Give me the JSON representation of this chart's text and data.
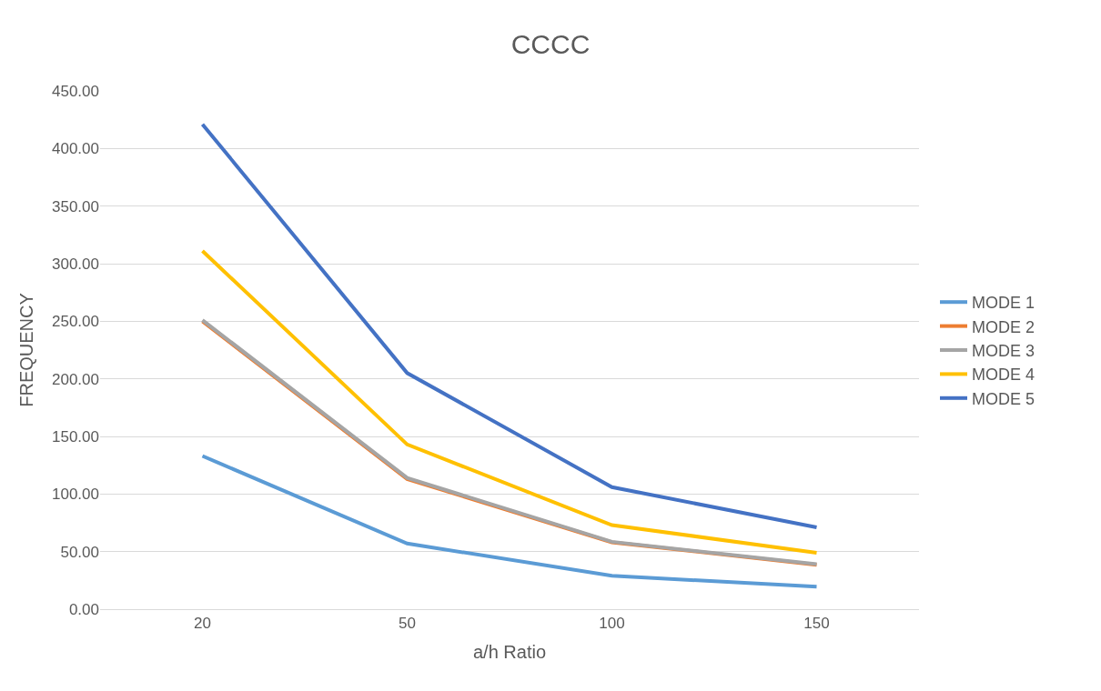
{
  "chart_data": {
    "type": "line",
    "title": "CCCC",
    "xlabel": "a/h Ratio",
    "ylabel": "FREQUENCY",
    "categories": [
      "20",
      "50",
      "100",
      "150"
    ],
    "series": [
      {
        "name": "MODE 1",
        "color": "#5b9bd5",
        "values": [
          133,
          57,
          29,
          19.5
        ]
      },
      {
        "name": "MODE 2",
        "color": "#ed7d31",
        "values": [
          250,
          113,
          58,
          38.5
        ]
      },
      {
        "name": "MODE 3",
        "color": "#a5a5a5",
        "values": [
          251,
          114,
          58.5,
          39
        ]
      },
      {
        "name": "MODE 4",
        "color": "#ffc000",
        "values": [
          311,
          143,
          73,
          49
        ]
      },
      {
        "name": "MODE 5",
        "color": "#4472c4",
        "values": [
          421,
          205,
          106,
          71
        ]
      }
    ],
    "ylim": [
      0,
      450
    ],
    "yticks": [
      {
        "value": 0,
        "label": "0.00"
      },
      {
        "value": 50,
        "label": "50.00"
      },
      {
        "value": 100,
        "label": "100.00"
      },
      {
        "value": 150,
        "label": "150.00"
      },
      {
        "value": 200,
        "label": "200.00"
      },
      {
        "value": 250,
        "label": "250.00"
      },
      {
        "value": 300,
        "label": "300.00"
      },
      {
        "value": 350,
        "label": "350.00"
      },
      {
        "value": 400,
        "label": "400.00"
      },
      {
        "value": 450,
        "label": "450.00"
      }
    ],
    "grid": "y",
    "legend": "right",
    "marker": "none",
    "line_style": "solid"
  }
}
